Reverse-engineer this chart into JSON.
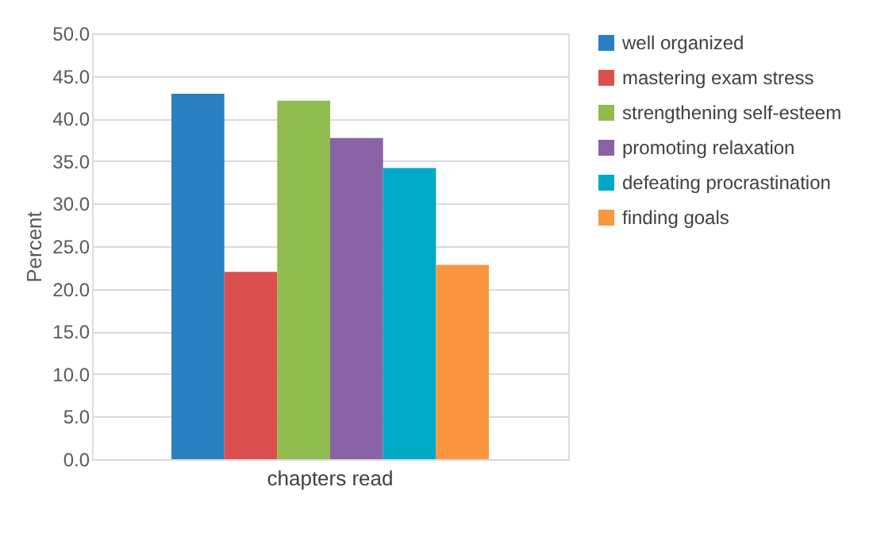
{
  "chart_data": {
    "type": "bar",
    "ylabel": "Percent",
    "categories": [
      "chapters read"
    ],
    "series": [
      {
        "name": "well organized",
        "color": "#2a7fc1",
        "values": [
          42.9
        ]
      },
      {
        "name": "mastering exam stress",
        "color": "#db4f4e",
        "values": [
          22.0
        ]
      },
      {
        "name": "strengthening self-esteem",
        "color": "#8fbb4f",
        "values": [
          42.1
        ]
      },
      {
        "name": "promoting relaxation",
        "color": "#8a62a6",
        "values": [
          37.7
        ]
      },
      {
        "name": "defeating procrastination",
        "color": "#00a9c6",
        "values": [
          34.2
        ]
      },
      {
        "name": "finding goals",
        "color": "#fa963f",
        "values": [
          22.8
        ]
      }
    ],
    "ylim": [
      0,
      50
    ],
    "yticks": [
      {
        "value": 0,
        "label": "0.0"
      },
      {
        "value": 5,
        "label": "5.0"
      },
      {
        "value": 10,
        "label": "10.0"
      },
      {
        "value": 15,
        "label": "15.0"
      },
      {
        "value": 20,
        "label": "20.0"
      },
      {
        "value": 25,
        "label": "25.0"
      },
      {
        "value": 30,
        "label": "30.0"
      },
      {
        "value": 35,
        "label": "35.0"
      },
      {
        "value": 40,
        "label": "40.0"
      },
      {
        "value": 45,
        "label": "45.0"
      },
      {
        "value": 50,
        "label": "50.0"
      }
    ],
    "grid": "y",
    "legend": "right"
  }
}
